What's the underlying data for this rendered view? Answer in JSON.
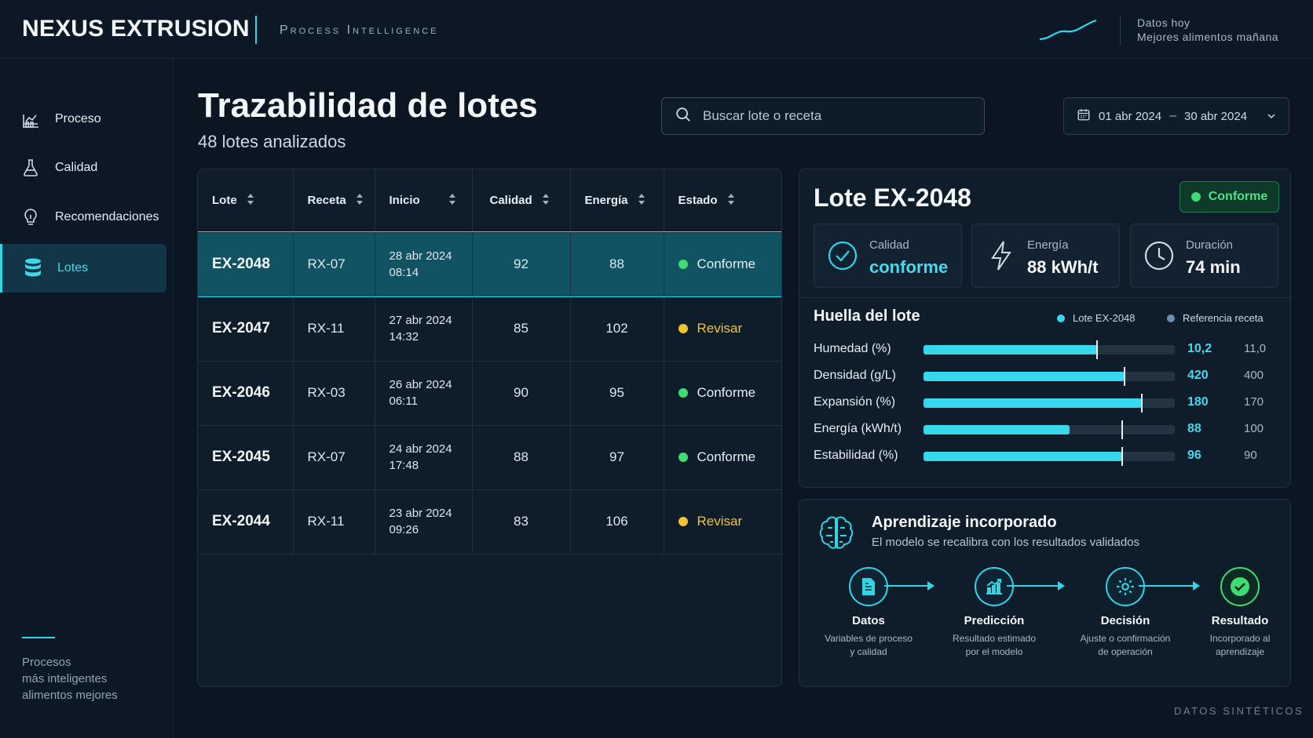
{
  "header": {
    "brand": "NEXUS EXTRUSION",
    "subtitle": "Process Intelligence",
    "tagline_1": "Datos hoy",
    "tagline_2": "Mejores alimentos mañana"
  },
  "sidebar": {
    "items": [
      {
        "label": "Proceso",
        "icon": "factory-chart-icon",
        "active": false
      },
      {
        "label": "Calidad",
        "icon": "flask-icon",
        "active": false
      },
      {
        "label": "Recomendaciones",
        "icon": "lightbulb-icon",
        "active": false
      },
      {
        "label": "Lotes",
        "icon": "database-icon",
        "active": true
      }
    ],
    "footer": [
      "Procesos",
      "más inteligentes",
      "alimentos mejores"
    ]
  },
  "main": {
    "title": "Trazabilidad de lotes",
    "subtitle": "48 lotes analizados",
    "search": {
      "placeholder": "Buscar lote o receta",
      "value": ""
    },
    "date_range": {
      "from": "01 abr 2024",
      "separator": "–",
      "to": "30 abr 2024"
    }
  },
  "table": {
    "columns": [
      "Lote",
      "Receta",
      "Inicio",
      "Calidad",
      "Energía",
      "Estado"
    ],
    "rows": [
      {
        "lote": "EX-2048",
        "receta": "RX-07",
        "fecha": "28 abr 2024",
        "hora": "08:14",
        "calidad": "92",
        "energia": "88",
        "estado": "Conforme",
        "status_color": "#3fdc74",
        "selected": true
      },
      {
        "lote": "EX-2047",
        "receta": "RX-11",
        "fecha": "27 abr 2024",
        "hora": "14:32",
        "calidad": "85",
        "energia": "102",
        "estado": "Revisar",
        "status_color": "#f2c230",
        "selected": false
      },
      {
        "lote": "EX-2046",
        "receta": "RX-03",
        "fecha": "26 abr 2024",
        "hora": "06:11",
        "calidad": "90",
        "energia": "95",
        "estado": "Conforme",
        "status_color": "#3fdc74",
        "selected": false
      },
      {
        "lote": "EX-2045",
        "receta": "RX-07",
        "fecha": "24 abr 2024",
        "hora": "17:48",
        "calidad": "88",
        "energia": "97",
        "estado": "Conforme",
        "status_color": "#3fdc74",
        "selected": false
      },
      {
        "lote": "EX-2044",
        "receta": "RX-11",
        "fecha": "23 abr 2024",
        "hora": "09:26",
        "calidad": "83",
        "energia": "106",
        "estado": "Revisar",
        "status_color": "#f2c230",
        "selected": false
      }
    ]
  },
  "detail": {
    "title": "Lote EX-2048",
    "badge": "Conforme",
    "kpis": [
      {
        "label": "Calidad",
        "value": "conforme",
        "icon": "check-circle-icon"
      },
      {
        "label": "Energía",
        "value": "88 kWh/t",
        "icon": "lightning-icon"
      },
      {
        "label": "Duración",
        "value": "74 min",
        "icon": "clock-icon"
      }
    ],
    "huella": {
      "title": "Huella del lote",
      "legend_lote": "Lote EX-2048",
      "legend_ref": "Referencia receta",
      "metrics": [
        {
          "label": "Humedad (%)",
          "value": "10,2",
          "reference": "11,0",
          "fill": 0.69,
          "ref_pos": 0.69
        },
        {
          "label": "Densidad (g/L)",
          "value": "420",
          "reference": "400",
          "fill": 0.8,
          "ref_pos": 0.8
        },
        {
          "label": "Expansión (%)",
          "value": "180",
          "reference": "170",
          "fill": 0.87,
          "ref_pos": 0.87
        },
        {
          "label": "Energía (kWh/t)",
          "value": "88",
          "reference": "100",
          "fill": 0.58,
          "ref_pos": 0.79
        },
        {
          "label": "Estabilidad (%)",
          "value": "96",
          "reference": "90",
          "fill": 0.79,
          "ref_pos": 0.79
        }
      ]
    }
  },
  "learning": {
    "title": "Aprendizaje incorporado",
    "subtitle": "El modelo se recalibra con los resultados validados",
    "steps": [
      {
        "title": "Datos",
        "desc1": "Variables de proceso",
        "desc2": "y calidad",
        "icon": "document-icon"
      },
      {
        "title": "Predicción",
        "desc1": "Resultado estimado",
        "desc2": "por el modelo",
        "icon": "chart-up-icon"
      },
      {
        "title": "Decisión",
        "desc1": "Ajuste o confirmación",
        "desc2": "de operación",
        "icon": "gear-icon"
      },
      {
        "title": "Resultado",
        "desc1": "Incorporado al",
        "desc2": "aprendizaje",
        "icon": "check-icon"
      }
    ]
  },
  "footer_note": "DATOS SINTÉTICOS",
  "colors": {
    "accent": "#2fd6e8",
    "ok": "#3fdc74",
    "warn": "#f2c230",
    "background": "#0b1622"
  }
}
